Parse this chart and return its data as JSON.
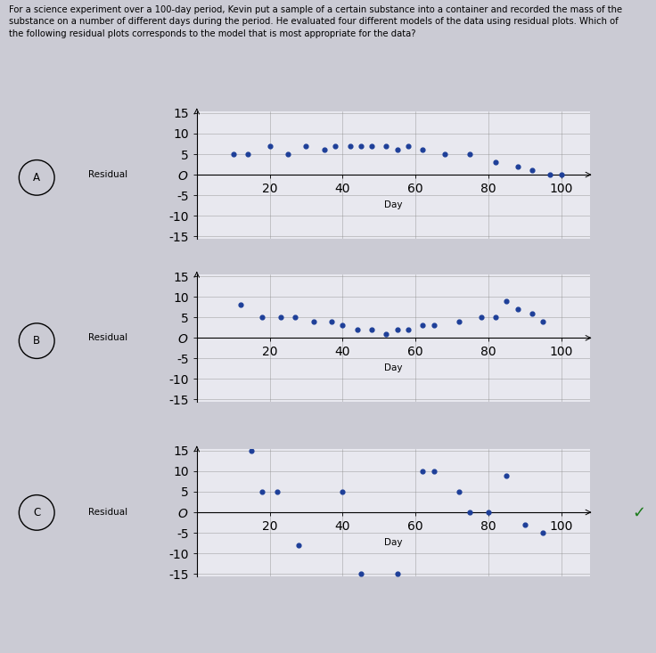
{
  "title_line1": "For a science experiment over a 100-day period, Kevin put a sample of a certain substance into a container and recorded the mass of the",
  "title_line2": "substance on a number of different days during the period. He evaluated four different models of the data using residual plots. Which of",
  "title_line3": "the following residual plots corresponds to the model that is most appropriate for the data?",
  "background_color": "#cbcbd4",
  "plot_bg_color": "#e8e8ef",
  "dot_color": "#1e3f99",
  "labels": [
    "A",
    "B",
    "C"
  ],
  "plot_A_days": [
    10,
    14,
    20,
    25,
    30,
    35,
    38,
    42,
    45,
    48,
    52,
    55,
    58,
    62,
    68,
    75,
    82,
    88,
    92,
    97,
    100
  ],
  "plot_A_residuals": [
    5,
    5,
    7,
    5,
    7,
    6,
    7,
    7,
    7,
    7,
    7,
    6,
    7,
    6,
    5,
    5,
    3,
    2,
    1,
    0,
    0
  ],
  "plot_B_days": [
    12,
    18,
    23,
    27,
    32,
    37,
    40,
    44,
    48,
    52,
    55,
    58,
    62,
    65,
    72,
    78,
    82,
    85,
    88,
    92,
    95
  ],
  "plot_B_residuals": [
    8,
    5,
    5,
    5,
    4,
    4,
    3,
    2,
    2,
    1,
    2,
    2,
    3,
    3,
    4,
    5,
    5,
    9,
    7,
    6,
    4
  ],
  "plot_C_days": [
    15,
    18,
    22,
    28,
    40,
    45,
    55,
    62,
    65,
    72,
    75,
    80,
    85,
    90,
    95
  ],
  "plot_C_residuals": [
    15,
    5,
    5,
    -8,
    5,
    -15,
    -15,
    10,
    10,
    5,
    0,
    0,
    9,
    -3,
    -5
  ],
  "ylim_lo": -15,
  "ylim_hi": 15,
  "xlim_lo": 0,
  "xlim_hi": 108,
  "yticks": [
    -15,
    -10,
    -5,
    0,
    5,
    10,
    15
  ],
  "xticks": [
    20,
    40,
    60,
    80,
    100
  ],
  "ylabel": "Residual",
  "xlabel": "Day",
  "checkmark_color": "#1a7a1a",
  "title_fontsize": 7.2,
  "tick_fontsize": 7.0,
  "label_fontsize": 8.5,
  "axis_label_fontsize": 7.5
}
